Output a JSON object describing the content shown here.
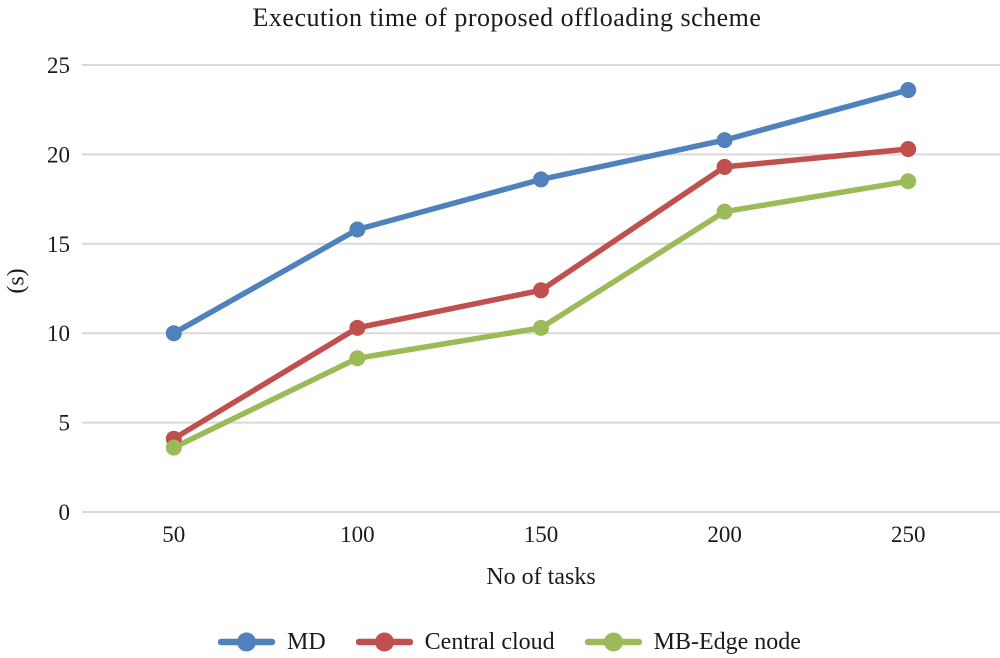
{
  "chart_data": {
    "type": "line",
    "title": "Execution time of proposed offloading scheme",
    "xlabel": "No of tasks",
    "ylabel": "(s)",
    "categories": [
      "50",
      "100",
      "150",
      "200",
      "250"
    ],
    "series": [
      {
        "name": "MD",
        "color": "#4F81BD",
        "values": [
          10,
          15.8,
          18.6,
          20.8,
          23.6
        ]
      },
      {
        "name": "Central cloud",
        "color": "#C0504D",
        "values": [
          4.1,
          10.3,
          12.4,
          19.3,
          20.3
        ]
      },
      {
        "name": "MB-Edge node",
        "color": "#9BBB59",
        "values": [
          3.6,
          8.6,
          10.3,
          16.8,
          18.5
        ]
      }
    ],
    "ylim": [
      0,
      25
    ],
    "yticks": [
      0,
      5,
      10,
      15,
      20,
      25
    ],
    "grid": true,
    "gridline_color": "#D9D9D9",
    "text_color": "#1A1A1A",
    "legend_position": "bottom",
    "marker": "circle"
  }
}
